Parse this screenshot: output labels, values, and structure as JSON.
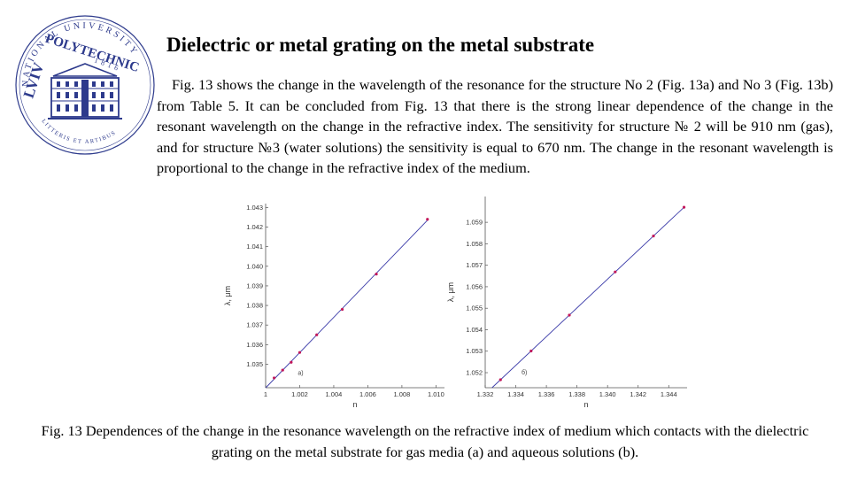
{
  "logo": {
    "top_text": "NATIONAL UNIVERSITY",
    "left_text": "LVIV",
    "main_text": "POLYTECHNIC",
    "year": "1816",
    "bottom_text": "LITTERIS ET ARTIBUS",
    "color": "#2d3a8c"
  },
  "title": "Dielectric or metal grating on the metal substrate",
  "paragraph": "Fig. 13 shows the change in the wavelength of the resonance for the structure No 2 (Fig. 13a) and No 3 (Fig. 13b) from Table 5. It can be concluded from Fig. 13 that there is the strong linear dependence of the change in the resonant wavelength on the change in the refractive index. The sensitivity for structure № 2 will be 910 nm (gas), and for structure №3 (water solutions) the sensitivity is equal to 670 nm. The change in the resonant wavelength is proportional to the change in the refractive index of the medium.",
  "chart_data": [
    {
      "type": "line",
      "xlabel": "n",
      "ylabel": "λ, μm",
      "annotation": "a)",
      "xlim": [
        1.0,
        1.0105
      ],
      "ylim": [
        1.0338,
        1.0432
      ],
      "xticks": [
        "1",
        "1.002",
        "1.004",
        "1.006",
        "1.008",
        "1.010"
      ],
      "yticks": [
        "1.035",
        "1.036",
        "1.037",
        "1.038",
        "1.039",
        "1.040",
        "1.041",
        "1.042",
        "1.043"
      ],
      "x": [
        1.0005,
        1.001,
        1.0015,
        1.002,
        1.003,
        1.0045,
        1.0065,
        1.0095
      ],
      "y": [
        1.0343,
        1.0347,
        1.0351,
        1.0356,
        1.0365,
        1.0378,
        1.0396,
        1.0424
      ],
      "line_color": "#3a3aa8",
      "marker_color": "#c2185b"
    },
    {
      "type": "line",
      "xlabel": "n",
      "ylabel": "λ, μm",
      "annotation": "б)",
      "xlim": [
        1.332,
        1.3452
      ],
      "ylim": [
        1.0513,
        1.0602
      ],
      "xticks": [
        "1.332",
        "1.334",
        "1.336",
        "1.338",
        "1.340",
        "1.342",
        "1.344"
      ],
      "yticks": [
        "1.052",
        "1.053",
        "1.054",
        "1.055",
        "1.056",
        "1.057",
        "1.058",
        "1.059"
      ],
      "x": [
        1.333,
        1.335,
        1.3375,
        1.3405,
        1.343,
        1.345
      ],
      "y": [
        1.05167,
        1.05301,
        1.05468,
        1.05669,
        1.05836,
        1.0597
      ],
      "line_color": "#3a3aa8",
      "marker_color": "#c2185b"
    }
  ],
  "caption": "Fig. 13 Dependences of the change in the resonance wavelength on the refractive index of medium which contacts with the dielectric grating on the metal substrate for gas media (a) and aqueous solutions (b)."
}
